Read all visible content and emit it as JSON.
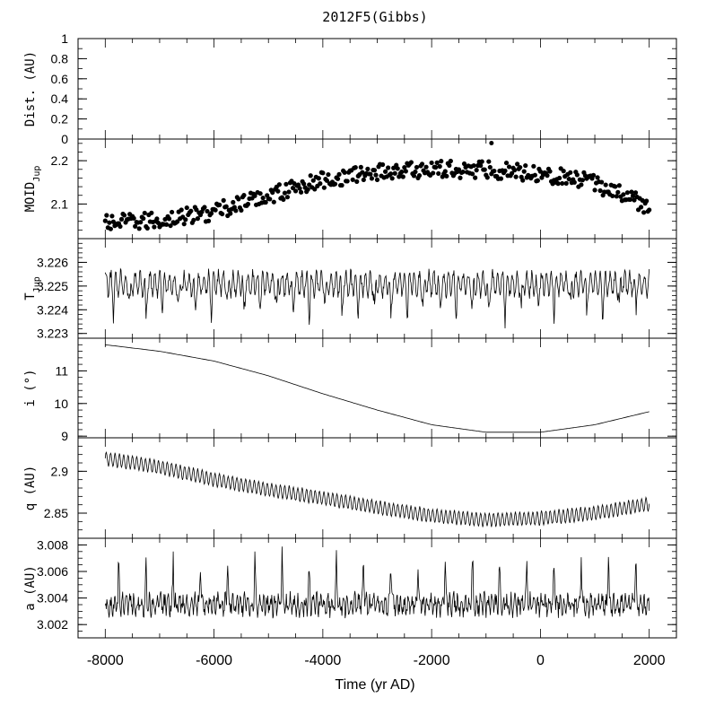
{
  "chart_data": {
    "type": "line",
    "title": "2012F5(Gibbs)",
    "xlabel": "Time (yr AD)",
    "xlim": [
      -8500,
      2500
    ],
    "x_ticks": [
      -8000,
      -6000,
      -4000,
      -2000,
      0,
      2000
    ],
    "x_tick_labels": [
      "-8000",
      "-6000",
      "-4000",
      "-2000",
      "0",
      "2000"
    ],
    "x_minor_step": 500,
    "panels": [
      {
        "id": "dist",
        "ylabel": "Dist. (AU)",
        "type": "scatter",
        "ylim": [
          0,
          1
        ],
        "y_ticks": [
          0,
          0.2,
          0.4,
          0.6,
          0.8,
          1
        ],
        "y_tick_labels": [
          "0",
          "0.2",
          "0.4",
          "0.6",
          "0.8",
          "1"
        ],
        "y_minor_step": 0.1,
        "points": [
          [
            -900,
            -0.04
          ]
        ]
      },
      {
        "id": "moid",
        "ylabel": "MOID",
        "ylabel_sub": "Jup",
        "type": "scatter",
        "ylim": [
          2.02,
          2.25
        ],
        "y_ticks": [
          2.1,
          2.2
        ],
        "y_tick_labels": [
          "2.1",
          "2.2"
        ],
        "y_minor_step": 0.02,
        "trend": [
          [
            -8000,
            2.055
          ],
          [
            -7000,
            2.062
          ],
          [
            -6000,
            2.082
          ],
          [
            -5000,
            2.12
          ],
          [
            -4000,
            2.155
          ],
          [
            -3000,
            2.175
          ],
          [
            -2000,
            2.18
          ],
          [
            -1000,
            2.18
          ],
          [
            0,
            2.172
          ],
          [
            1000,
            2.148
          ],
          [
            2000,
            2.095
          ]
        ],
        "spread": 0.02,
        "step_years": 25
      },
      {
        "id": "tjup",
        "ylabel": "T",
        "ylabel_sub": "Jup",
        "type": "line",
        "ylim": [
          3.2228,
          3.227
        ],
        "y_ticks": [
          3.223,
          3.224,
          3.225,
          3.226
        ],
        "y_tick_labels": [
          "3.223",
          "3.224",
          "3.225",
          "3.226"
        ],
        "y_minor_step": 0.0002,
        "base": 3.2251,
        "period_years": 300,
        "dip_depth": 0.0011,
        "noise": 0.0004
      },
      {
        "id": "incl",
        "ylabel": "i (°)",
        "type": "line",
        "ylim": [
          8.95,
          12.0
        ],
        "y_ticks": [
          9,
          10,
          11
        ],
        "y_tick_labels": [
          "9",
          "10",
          "11"
        ],
        "y_minor_step": 0.2,
        "curve": [
          [
            -8000,
            11.8
          ],
          [
            -7000,
            11.6
          ],
          [
            -6000,
            11.3
          ],
          [
            -5000,
            10.85
          ],
          [
            -4000,
            10.3
          ],
          [
            -3000,
            9.8
          ],
          [
            -2000,
            9.35
          ],
          [
            -1000,
            9.12
          ],
          [
            0,
            9.12
          ],
          [
            1000,
            9.35
          ],
          [
            2000,
            9.75
          ]
        ]
      },
      {
        "id": "q",
        "ylabel": "q (AU)",
        "type": "line",
        "ylim": [
          2.82,
          2.94
        ],
        "y_ticks": [
          2.85,
          2.9
        ],
        "y_tick_labels": [
          "2.85",
          "2.9"
        ],
        "y_minor_step": 0.01,
        "trend": [
          [
            -8000,
            2.915
          ],
          [
            -7000,
            2.905
          ],
          [
            -6000,
            2.89
          ],
          [
            -5000,
            2.878
          ],
          [
            -4000,
            2.868
          ],
          [
            -3000,
            2.857
          ],
          [
            -2000,
            2.847
          ],
          [
            -1000,
            2.842
          ],
          [
            0,
            2.844
          ],
          [
            1000,
            2.85
          ],
          [
            2000,
            2.861
          ]
        ],
        "amplitude": 0.008,
        "period_years": 80
      },
      {
        "id": "a",
        "ylabel": "a (AU)",
        "type": "line",
        "ylim": [
          3.001,
          3.0085
        ],
        "y_ticks": [
          3.002,
          3.004,
          3.006,
          3.008
        ],
        "y_tick_labels": [
          "3.002",
          "3.004",
          "3.006",
          "3.008"
        ],
        "y_minor_step": 0.0005,
        "base": 3.0035,
        "period_years": 500,
        "peak_height": 0.0038,
        "noise": 0.0011
      }
    ]
  }
}
